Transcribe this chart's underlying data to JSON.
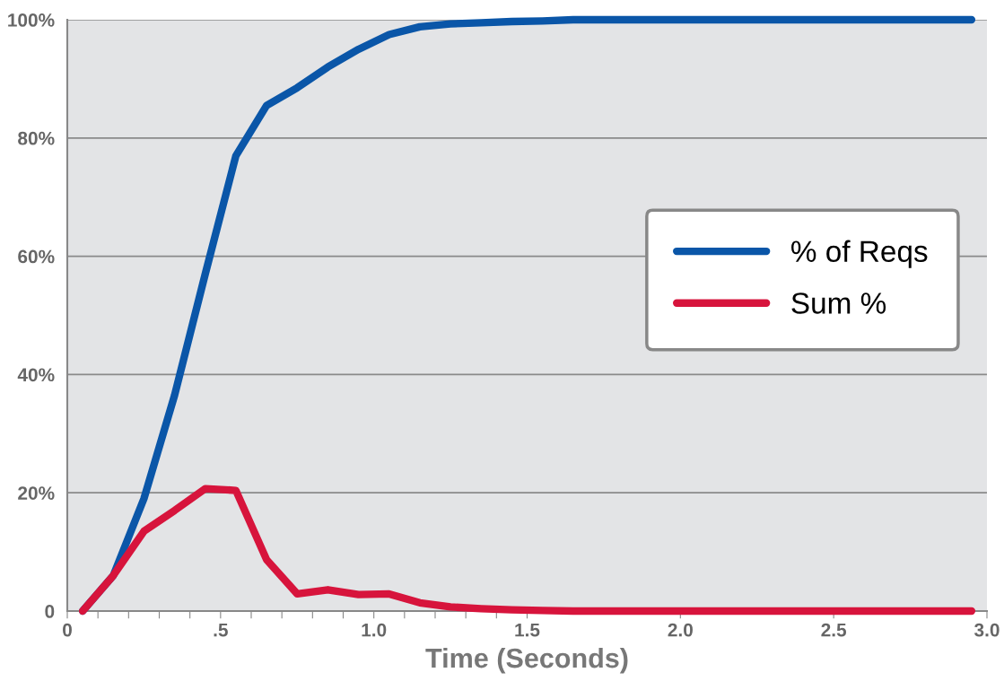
{
  "chart_data": {
    "type": "line",
    "xlabel": "Time (Seconds)",
    "x": [
      0.05,
      0.15,
      0.25,
      0.35,
      0.45,
      0.55,
      0.65,
      0.75,
      0.85,
      0.95,
      1.05,
      1.15,
      1.25,
      1.35,
      1.45,
      1.55,
      1.65,
      1.75,
      1.85,
      1.95,
      2.05,
      2.15,
      2.25,
      2.35,
      2.45,
      2.55,
      2.65,
      2.75,
      2.85,
      2.95
    ],
    "series": [
      {
        "name": "% of Reqs",
        "color": "#0a56a8",
        "values": [
          0,
          6,
          19,
          36.5,
          57,
          77,
          85.5,
          88.5,
          92,
          95,
          97.5,
          98.8,
          99.3,
          99.5,
          99.7,
          99.8,
          100,
          100,
          100,
          100,
          100,
          100,
          100,
          100,
          100,
          100,
          100,
          100,
          100,
          100
        ]
      },
      {
        "name": "Sum %",
        "color": "#d7143c",
        "values": [
          0,
          6,
          13.5,
          17,
          20.7,
          20.4,
          8.7,
          2.9,
          3.6,
          2.8,
          2.9,
          1.4,
          0.7,
          0.4,
          0.2,
          0.1,
          0,
          0,
          0,
          0,
          0,
          0,
          0,
          0,
          0,
          0,
          0,
          0,
          0,
          0
        ]
      }
    ],
    "xlim": [
      0,
      3.0
    ],
    "ylim": [
      0,
      100
    ],
    "xticks": [
      {
        "value": 0,
        "label": "0"
      },
      {
        "value": 0.1,
        "label": null
      },
      {
        "value": 0.2,
        "label": null
      },
      {
        "value": 0.3,
        "label": null
      },
      {
        "value": 0.4,
        "label": null
      },
      {
        "value": 0.5,
        "label": ".5"
      },
      {
        "value": 0.6,
        "label": null
      },
      {
        "value": 0.7,
        "label": null
      },
      {
        "value": 0.8,
        "label": null
      },
      {
        "value": 0.9,
        "label": null
      },
      {
        "value": 1.0,
        "label": "1.0"
      },
      {
        "value": 1.1,
        "label": null
      },
      {
        "value": 1.2,
        "label": null
      },
      {
        "value": 1.3,
        "label": null
      },
      {
        "value": 1.4,
        "label": null
      },
      {
        "value": 1.5,
        "label": "1.5"
      },
      {
        "value": 2.0,
        "label": "2.0"
      },
      {
        "value": 2.5,
        "label": "2.5"
      },
      {
        "value": 3.0,
        "label": "3.0"
      }
    ],
    "yticks": [
      {
        "value": 0,
        "label": "0"
      },
      {
        "value": 20,
        "label": "20%"
      },
      {
        "value": 40,
        "label": "40%"
      },
      {
        "value": 60,
        "label": "60%"
      },
      {
        "value": 80,
        "label": "80%"
      },
      {
        "value": 100,
        "label": "100%"
      }
    ],
    "grid": "y",
    "legend": "right",
    "line_style": "solid",
    "marker": "none"
  }
}
